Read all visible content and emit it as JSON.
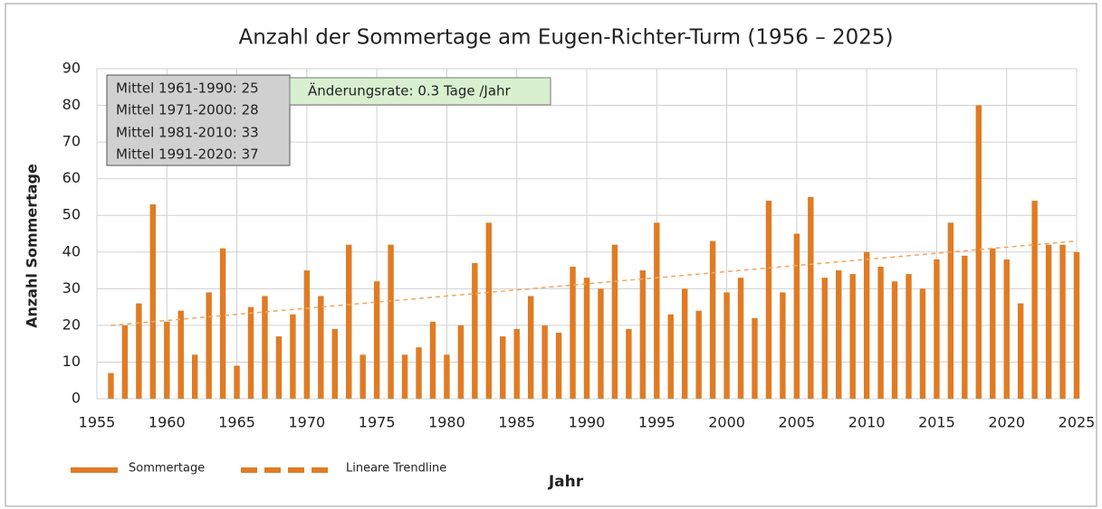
{
  "chart_data": {
    "type": "bar",
    "title": "Anzahl der Sommertage am Eugen-Richter-Turm (1956 – 2025)",
    "x_label": "Jahr",
    "y_label": "Anzahl Sommertage",
    "x": [
      1956,
      1957,
      1958,
      1959,
      1960,
      1961,
      1962,
      1963,
      1964,
      1965,
      1966,
      1967,
      1968,
      1969,
      1970,
      1971,
      1972,
      1973,
      1974,
      1975,
      1976,
      1977,
      1978,
      1979,
      1980,
      1981,
      1982,
      1983,
      1984,
      1985,
      1986,
      1987,
      1988,
      1989,
      1990,
      1991,
      1992,
      1993,
      1994,
      1995,
      1996,
      1997,
      1998,
      1999,
      2000,
      2001,
      2002,
      2003,
      2004,
      2005,
      2006,
      2007,
      2008,
      2009,
      2010,
      2011,
      2012,
      2013,
      2014,
      2015,
      2016,
      2017,
      2018,
      2019,
      2020,
      2021,
      2022,
      2023,
      2024,
      2025
    ],
    "series": [
      {
        "name": "Sommertage",
        "color": "#e07b24",
        "values": [
          7,
          20,
          26,
          53,
          21,
          24,
          12,
          29,
          41,
          9,
          25,
          28,
          17,
          23,
          35,
          28,
          19,
          42,
          12,
          32,
          42,
          12,
          14,
          21,
          12,
          20,
          37,
          48,
          17,
          19,
          28,
          20,
          18,
          36,
          33,
          30,
          42,
          19,
          35,
          48,
          23,
          30,
          24,
          43,
          29,
          33,
          22,
          54,
          29,
          45,
          55,
          33,
          35,
          34,
          40,
          36,
          32,
          34,
          30,
          38,
          48,
          39,
          80,
          41,
          38,
          26,
          54,
          42,
          42,
          40
        ]
      },
      {
        "name": "Lineare Trendline",
        "color": "#f0a860",
        "type": "line",
        "x": [
          1956,
          2025
        ],
        "values": [
          20,
          43
        ]
      }
    ],
    "annotations": [
      "Mittel 1961-1990: 25",
      "Mittel 1971-2000: 28",
      "Mittel 1981-2010: 33",
      "Mittel 1991-2020: 37",
      "Änderungsrate: 0.3 Tage /Jahr"
    ],
    "xlim": [
      1955,
      2025
    ],
    "xticks": [
      1955,
      1960,
      1965,
      1970,
      1975,
      1980,
      1985,
      1990,
      1995,
      2000,
      2005,
      2010,
      2015,
      2020,
      2025
    ],
    "ylim": [
      0,
      90
    ],
    "yticks": [
      0,
      10,
      20,
      30,
      40,
      50,
      60,
      70,
      80,
      90
    ],
    "grid": true
  }
}
